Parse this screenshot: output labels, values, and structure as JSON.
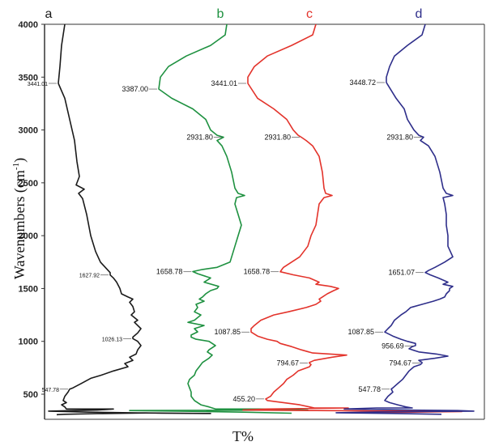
{
  "chart_data": {
    "type": "line",
    "ylabel": "Wavenumbers (cm-1)",
    "ylabel_main": "Wavenumbers (cm",
    "ylabel_sup": "-1",
    "ylabel_close": ")",
    "xlabel": "T%",
    "ylim": [
      250,
      4000
    ],
    "yticks": [
      500,
      1000,
      1500,
      2000,
      2500,
      3000,
      3500,
      4000
    ],
    "orientation": "vertical",
    "grid": false,
    "series": [
      {
        "name": "a",
        "color": "#1a1a1a",
        "annotations": [
          {
            "wavenumber": 3441.01,
            "label": "3441.01"
          },
          {
            "wavenumber": 1627.92,
            "label": "1627.92"
          },
          {
            "wavenumber": 1026.13,
            "label": "1026.13"
          },
          {
            "wavenumber": 547.78,
            "label": "547.78"
          }
        ]
      },
      {
        "name": "b",
        "color": "#1e9140",
        "annotations": [
          {
            "wavenumber": 3387.0,
            "label": "3387.00"
          },
          {
            "wavenumber": 2931.8,
            "label": "2931.80"
          },
          {
            "wavenumber": 1658.78,
            "label": "1658.78"
          }
        ]
      },
      {
        "name": "c",
        "color": "#e3332b",
        "annotations": [
          {
            "wavenumber": 3441.01,
            "label": "3441.01"
          },
          {
            "wavenumber": 2931.8,
            "label": "2931.80"
          },
          {
            "wavenumber": 1658.78,
            "label": "1658.78"
          },
          {
            "wavenumber": 1087.85,
            "label": "1087.85"
          },
          {
            "wavenumber": 794.67,
            "label": "794.67"
          },
          {
            "wavenumber": 455.2,
            "label": "455.20"
          }
        ]
      },
      {
        "name": "d",
        "color": "#2e2e8a",
        "annotations": [
          {
            "wavenumber": 3448.72,
            "label": "3448.72"
          },
          {
            "wavenumber": 2931.8,
            "label": "2931.80"
          },
          {
            "wavenumber": 1651.07,
            "label": "1651.07"
          },
          {
            "wavenumber": 1087.85,
            "label": "1087.85"
          },
          {
            "wavenumber": 956.69,
            "label": "956.69"
          },
          {
            "wavenumber": 794.67,
            "label": "794.67"
          },
          {
            "wavenumber": 547.78,
            "label": "547.78"
          }
        ]
      }
    ]
  }
}
